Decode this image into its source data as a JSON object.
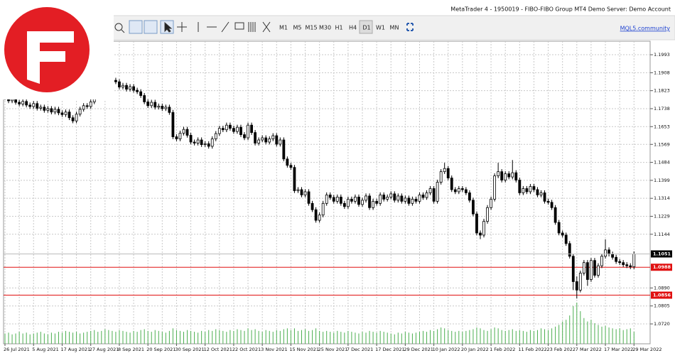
{
  "window": {
    "title": "MetaTrader 4 - 1950019 - FIBO-FIBO Group MT4 Demo Server: Demo Account"
  },
  "toolbar": {
    "timeframes": [
      "M1",
      "M5",
      "M15",
      "M30",
      "H1",
      "H4",
      "D1",
      "W1",
      "MN"
    ],
    "active": "D1",
    "link": "MQL5.community"
  },
  "chart_data": {
    "type": "candlestick",
    "categories": [
      "26 Jul 2021",
      null,
      null,
      null,
      null,
      null,
      null,
      null,
      "5 Aug 2021",
      null,
      null,
      null,
      null,
      null,
      null,
      null,
      "17 Aug 2021",
      null,
      null,
      null,
      null,
      null,
      null,
      null,
      "27 Aug 2021",
      null,
      null,
      null,
      null,
      null,
      null,
      null,
      "8 Sep 2021",
      null,
      null,
      null,
      null,
      null,
      null,
      null,
      "20 Sep 2021",
      null,
      null,
      null,
      null,
      null,
      null,
      null,
      "30 Sep 2021",
      null,
      null,
      null,
      null,
      null,
      null,
      null,
      "12 Oct 2021",
      null,
      null,
      null,
      null,
      null,
      null,
      null,
      "22 Oct 2021",
      null,
      null,
      null,
      null,
      null,
      null,
      null,
      "3 Nov 2021",
      null,
      null,
      null,
      null,
      null,
      null,
      null,
      "15 Nov 2021",
      null,
      null,
      null,
      null,
      null,
      null,
      null,
      "25 Nov 2021",
      null,
      null,
      null,
      null,
      null,
      null,
      null,
      "7 Dec 2021",
      null,
      null,
      null,
      null,
      null,
      null,
      null,
      "17 Dec 2021",
      null,
      null,
      null,
      null,
      null,
      null,
      null,
      "29 Dec 2021",
      null,
      null,
      null,
      null,
      null,
      null,
      null,
      "10 Jan 2022",
      null,
      null,
      null,
      null,
      null,
      null,
      null,
      "20 Jan 2022",
      null,
      null,
      null,
      null,
      null,
      null,
      null,
      "1 Feb 2022",
      null,
      null,
      null,
      null,
      null,
      null,
      null,
      "11 Feb 2022",
      null,
      null,
      null,
      null,
      null,
      null,
      null,
      "23 Feb 2022",
      null,
      null,
      null,
      null,
      null,
      null,
      null,
      "7 Mar 2022",
      null,
      null,
      null,
      null,
      null,
      null,
      null,
      "17 Mar 2022",
      null,
      null,
      null,
      null,
      null,
      null,
      null,
      "29 Mar 2022"
    ],
    "open": [
      1.18,
      1.179,
      1.1775,
      1.1782,
      1.1768,
      1.176,
      1.1772,
      1.1755,
      1.1748,
      1.1762,
      1.174,
      1.1745,
      1.173,
      1.1738,
      1.1722,
      1.1735,
      1.1718,
      1.171,
      1.1722,
      1.1695,
      1.168,
      1.1712,
      1.1735,
      1.1752,
      1.1748,
      1.177,
      1.1795,
      1.1808,
      1.1822,
      1.1845,
      1.186,
      1.1872,
      1.1865,
      1.184,
      1.1848,
      1.183,
      1.1842,
      1.1825,
      1.1818,
      1.18,
      1.177,
      1.1752,
      1.1768,
      1.1745,
      1.175,
      1.1738,
      1.1745,
      1.172,
      1.1605,
      1.1595,
      1.1622,
      1.164,
      1.1612,
      1.158,
      1.1575,
      1.159,
      1.1568,
      1.1572,
      1.156,
      1.1595,
      1.162,
      1.1645,
      1.1638,
      1.166,
      1.1645,
      1.163,
      1.165,
      1.1615,
      1.16,
      1.166,
      1.1625,
      1.1575,
      1.159,
      1.16,
      1.158,
      1.1595,
      1.161,
      1.157,
      1.159,
      1.15,
      1.147,
      1.146,
      1.135,
      1.1355,
      1.133,
      1.1345,
      1.129,
      1.126,
      1.121,
      1.1235,
      1.129,
      1.133,
      1.1318,
      1.13,
      1.132,
      1.129,
      1.1275,
      1.131,
      1.13,
      1.132,
      1.1285,
      1.1305,
      1.1325,
      1.127,
      1.13,
      1.129,
      1.133,
      1.131,
      1.132,
      1.1335,
      1.1305,
      1.1325,
      1.13,
      1.1315,
      1.129,
      1.131,
      1.13,
      1.133,
      1.1318,
      1.134,
      1.136,
      1.13,
      1.139,
      1.144,
      1.1455,
      1.141,
      1.1355,
      1.1345,
      1.136,
      1.1355,
      1.134,
      1.1305,
      1.124,
      1.115,
      1.114,
      1.1205,
      1.127,
      1.131,
      1.142,
      1.144,
      1.14,
      1.143,
      1.1415,
      1.1435,
      1.14,
      1.134,
      1.136,
      1.1345,
      1.137,
      1.1355,
      1.133,
      1.134,
      1.13,
      1.1295,
      1.127,
      1.12,
      1.115,
      1.114,
      1.11,
      1.104,
      1.092,
      1.088,
      1.096,
      1.101,
      1.093,
      1.102,
      1.095,
      1.0995,
      1.104,
      1.107,
      1.105,
      1.1035,
      1.1015,
      1.101,
      1.1,
      1.0995,
      1.099
    ],
    "high": [
      1.1812,
      1.1802,
      1.1794,
      1.1794,
      1.178,
      1.1784,
      1.1784,
      1.1767,
      1.1774,
      1.1774,
      1.1757,
      1.1757,
      1.175,
      1.175,
      1.1747,
      1.1747,
      1.173,
      1.1734,
      1.1734,
      1.1707,
      1.1724,
      1.1747,
      1.1764,
      1.1764,
      1.1782,
      1.1807,
      1.182,
      1.1834,
      1.1857,
      1.1872,
      1.1884,
      1.1884,
      1.1877,
      1.186,
      1.186,
      1.1854,
      1.1854,
      1.1837,
      1.183,
      1.1812,
      1.1782,
      1.178,
      1.178,
      1.1762,
      1.1762,
      1.1757,
      1.1757,
      1.1732,
      1.1617,
      1.1634,
      1.1652,
      1.1652,
      1.1624,
      1.1592,
      1.1602,
      1.1602,
      1.1584,
      1.1584,
      1.1607,
      1.1632,
      1.1657,
      1.1657,
      1.1672,
      1.1672,
      1.1657,
      1.1662,
      1.1662,
      1.1627,
      1.1672,
      1.1672,
      1.1637,
      1.1602,
      1.1612,
      1.1612,
      1.1607,
      1.1622,
      1.1622,
      1.1602,
      1.1602,
      1.1512,
      1.1482,
      1.1472,
      1.1367,
      1.1367,
      1.1357,
      1.1357,
      1.1302,
      1.1272,
      1.1247,
      1.1302,
      1.1342,
      1.1342,
      1.133,
      1.1332,
      1.1332,
      1.1302,
      1.1322,
      1.1322,
      1.1332,
      1.1332,
      1.1317,
      1.1337,
      1.1337,
      1.1312,
      1.1312,
      1.1342,
      1.1342,
      1.1332,
      1.1347,
      1.1347,
      1.1337,
      1.1337,
      1.1327,
      1.1327,
      1.1322,
      1.1322,
      1.1342,
      1.1342,
      1.1352,
      1.1372,
      1.1372,
      1.1402,
      1.1452,
      1.1482,
      1.1467,
      1.1422,
      1.1367,
      1.1372,
      1.1372,
      1.1367,
      1.1352,
      1.1317,
      1.1252,
      1.1162,
      1.1217,
      1.1282,
      1.1322,
      1.1432,
      1.1482,
      1.1452,
      1.1442,
      1.1442,
      1.1495,
      1.1447,
      1.1412,
      1.1372,
      1.1372,
      1.1382,
      1.1382,
      1.1367,
      1.1352,
      1.1352,
      1.1312,
      1.1307,
      1.1282,
      1.1212,
      1.1162,
      1.1152,
      1.1112,
      1.1052,
      1.0945,
      1.0972,
      1.1022,
      1.1022,
      1.1032,
      1.1032,
      1.1007,
      1.1052,
      1.112,
      1.1082,
      1.1062,
      1.1047,
      1.1027,
      1.1022,
      1.1012,
      1.1007,
      1.1063
    ],
    "low": [
      1.1779,
      1.1764,
      1.1764,
      1.1757,
      1.1749,
      1.1749,
      1.1744,
      1.1737,
      1.1737,
      1.1729,
      1.1729,
      1.1719,
      1.1719,
      1.1711,
      1.1711,
      1.1707,
      1.1699,
      1.1699,
      1.1684,
      1.1669,
      1.1669,
      1.1701,
      1.1724,
      1.1737,
      1.1737,
      1.1759,
      1.1784,
      1.1797,
      1.1811,
      1.1834,
      1.1849,
      1.1854,
      1.1829,
      1.1829,
      1.1819,
      1.1819,
      1.1814,
      1.1807,
      1.1789,
      1.1759,
      1.1741,
      1.1741,
      1.1734,
      1.1734,
      1.1727,
      1.1727,
      1.1709,
      1.1594,
      1.1584,
      1.1584,
      1.1611,
      1.1601,
      1.1569,
      1.1564,
      1.1564,
      1.1557,
      1.1557,
      1.1549,
      1.1549,
      1.1584,
      1.1609,
      1.1627,
      1.1627,
      1.1634,
      1.1619,
      1.1619,
      1.1604,
      1.1589,
      1.1589,
      1.1614,
      1.1564,
      1.1564,
      1.1579,
      1.1569,
      1.1569,
      1.1584,
      1.1559,
      1.1559,
      1.1489,
      1.1459,
      1.1449,
      1.1339,
      1.1339,
      1.1319,
      1.1319,
      1.1279,
      1.1249,
      1.1199,
      1.1199,
      1.1224,
      1.1279,
      1.1307,
      1.1289,
      1.1289,
      1.1279,
      1.1264,
      1.1264,
      1.1289,
      1.1289,
      1.1274,
      1.1274,
      1.1294,
      1.1259,
      1.1259,
      1.1279,
      1.1279,
      1.1299,
      1.1299,
      1.1309,
      1.1294,
      1.1294,
      1.1289,
      1.1289,
      1.1279,
      1.1279,
      1.1289,
      1.1289,
      1.1307,
      1.1307,
      1.1329,
      1.1289,
      1.1289,
      1.1379,
      1.1429,
      1.1399,
      1.1344,
      1.1334,
      1.1334,
      1.1344,
      1.1329,
      1.1294,
      1.1229,
      1.1139,
      1.1121,
      1.1129,
      1.1194,
      1.1259,
      1.1299,
      1.1409,
      1.1389,
      1.1389,
      1.1404,
      1.1404,
      1.1389,
      1.1329,
      1.1329,
      1.1334,
      1.1334,
      1.1344,
      1.1319,
      1.1319,
      1.1289,
      1.1284,
      1.1259,
      1.1189,
      1.1139,
      1.1129,
      1.1089,
      1.1029,
      1.088,
      1.084,
      1.0869,
      1.0949,
      1.09,
      1.0919,
      1.0939,
      1.0939,
      1.0984,
      1.1029,
      1.1039,
      1.1024,
      1.1004,
      1.0999,
      1.0989,
      1.0984,
      1.0979,
      1.0979
    ],
    "close": [
      1.179,
      1.1775,
      1.1782,
      1.1768,
      1.176,
      1.1772,
      1.1755,
      1.1748,
      1.1762,
      1.174,
      1.1745,
      1.173,
      1.1738,
      1.1722,
      1.1735,
      1.1718,
      1.171,
      1.1722,
      1.1695,
      1.168,
      1.1712,
      1.1735,
      1.1752,
      1.1748,
      1.177,
      1.1795,
      1.1808,
      1.1822,
      1.1845,
      1.186,
      1.1872,
      1.1865,
      1.184,
      1.1848,
      1.183,
      1.1842,
      1.1825,
      1.1818,
      1.18,
      1.177,
      1.1752,
      1.1768,
      1.1745,
      1.175,
      1.1738,
      1.1745,
      1.172,
      1.1605,
      1.1595,
      1.1622,
      1.164,
      1.1612,
      1.158,
      1.1575,
      1.159,
      1.1568,
      1.1572,
      1.156,
      1.1595,
      1.162,
      1.1645,
      1.1638,
      1.166,
      1.1645,
      1.163,
      1.165,
      1.1615,
      1.16,
      1.166,
      1.1625,
      1.1575,
      1.159,
      1.16,
      1.158,
      1.1595,
      1.161,
      1.157,
      1.159,
      1.15,
      1.147,
      1.146,
      1.135,
      1.1355,
      1.133,
      1.1345,
      1.129,
      1.126,
      1.121,
      1.1235,
      1.129,
      1.133,
      1.1318,
      1.13,
      1.132,
      1.129,
      1.1275,
      1.131,
      1.13,
      1.132,
      1.1285,
      1.1305,
      1.1325,
      1.127,
      1.13,
      1.129,
      1.133,
      1.131,
      1.132,
      1.1335,
      1.1305,
      1.1325,
      1.13,
      1.1315,
      1.129,
      1.131,
      1.13,
      1.133,
      1.1318,
      1.134,
      1.136,
      1.13,
      1.139,
      1.144,
      1.1455,
      1.141,
      1.1355,
      1.1345,
      1.136,
      1.1355,
      1.134,
      1.1305,
      1.124,
      1.115,
      1.114,
      1.1205,
      1.127,
      1.131,
      1.142,
      1.144,
      1.14,
      1.143,
      1.1415,
      1.1435,
      1.14,
      1.134,
      1.136,
      1.1345,
      1.137,
      1.1355,
      1.133,
      1.134,
      1.13,
      1.1295,
      1.127,
      1.12,
      1.115,
      1.114,
      1.11,
      1.104,
      1.092,
      1.088,
      1.096,
      1.101,
      1.093,
      1.102,
      1.095,
      1.0995,
      1.104,
      1.107,
      1.105,
      1.1035,
      1.1015,
      1.101,
      1.1,
      1.0995,
      1.099,
      1.1051
    ],
    "volume": [
      12,
      13,
      11,
      12,
      14,
      12,
      13,
      11,
      12,
      13,
      14,
      12,
      11,
      13,
      12,
      14,
      13,
      15,
      14,
      13,
      14,
      12,
      13,
      14,
      15,
      16,
      14,
      15,
      17,
      16,
      15,
      14,
      16,
      15,
      14,
      13,
      15,
      14,
      16,
      17,
      15,
      14,
      16,
      15,
      14,
      13,
      15,
      18,
      16,
      15,
      14,
      16,
      15,
      14,
      13,
      15,
      14,
      16,
      15,
      17,
      16,
      15,
      14,
      16,
      15,
      17,
      16,
      15,
      18,
      16,
      17,
      15,
      14,
      16,
      15,
      14,
      16,
      15,
      17,
      18,
      16,
      18,
      15,
      16,
      17,
      15,
      16,
      18,
      15,
      14,
      15,
      14,
      13,
      15,
      14,
      13,
      15,
      14,
      13,
      12,
      14,
      13,
      15,
      14,
      13,
      15,
      14,
      13,
      12,
      11,
      13,
      12,
      14,
      13,
      12,
      13,
      14,
      15,
      14,
      16,
      15,
      17,
      19,
      18,
      16,
      15,
      14,
      15,
      14,
      15,
      16,
      17,
      19,
      18,
      16,
      15,
      17,
      19,
      18,
      16,
      15,
      16,
      17,
      15,
      16,
      15,
      14,
      16,
      15,
      16,
      18,
      17,
      16,
      18,
      20,
      22,
      26,
      28,
      33,
      44,
      48,
      38,
      30,
      26,
      28,
      24,
      22,
      20,
      21,
      19,
      18,
      17,
      18,
      16,
      17,
      18,
      14
    ],
    "ylim": [
      1.0626,
      1.2057
    ],
    "yticks": [
      1.1993,
      1.1908,
      1.1823,
      1.1738,
      1.1653,
      1.1569,
      1.1484,
      1.1399,
      1.1314,
      1.1229,
      1.1144,
      {
        "value": 1.089,
        "label": "1.0890"
      },
      1.0805,
      {
        "value": 1.072,
        "label": "1.0720"
      }
    ],
    "grid": true,
    "bull_color": "#ffffff",
    "bear_color": "#000000",
    "volume_color": "#4caf50",
    "hlines": [
      {
        "value": 1.0988,
        "label": "1.0988",
        "color": "#e01010"
      },
      {
        "value": 1.0856,
        "label": "1.0856",
        "color": "#e01010"
      }
    ],
    "last_price": 1.1051
  }
}
